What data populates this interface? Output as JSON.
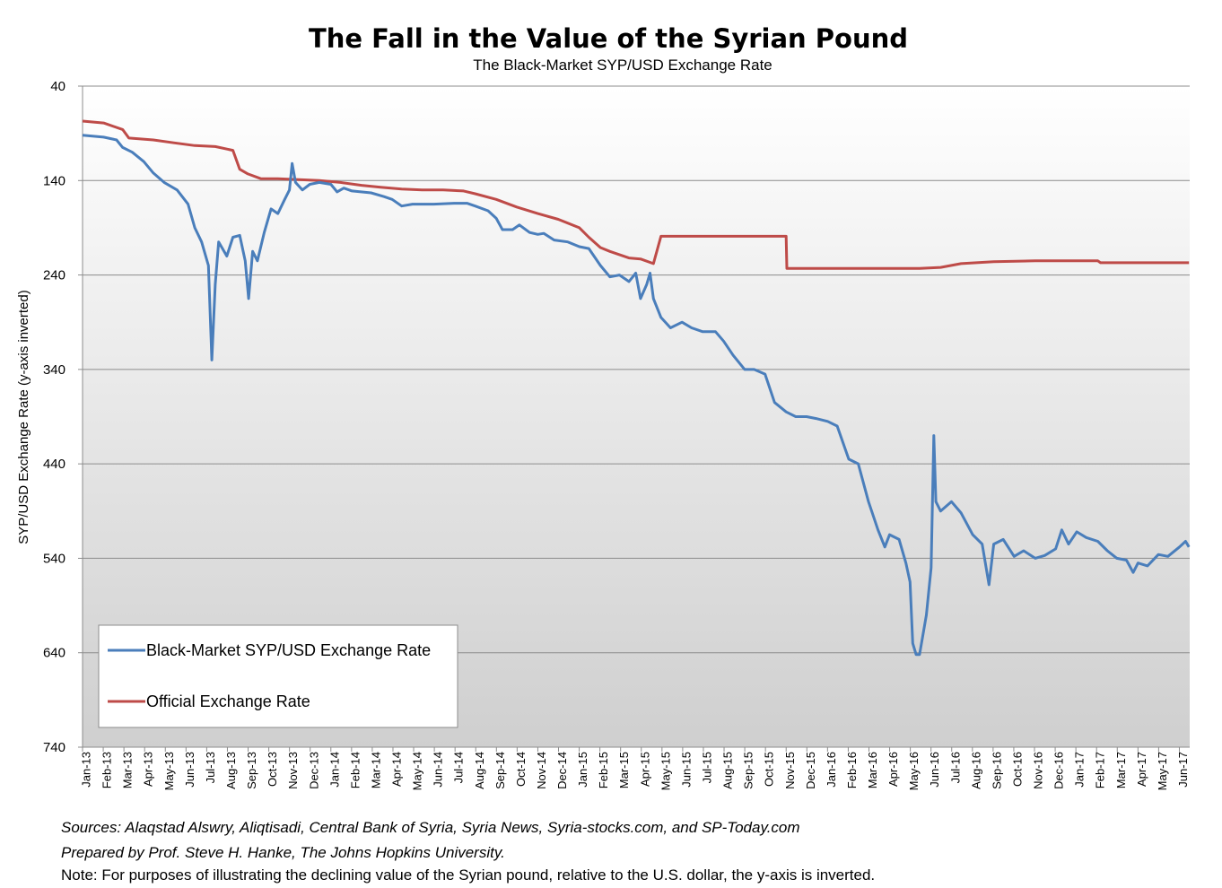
{
  "chart_data": {
    "type": "line",
    "title": "The Fall in the Value of the Syrian Pound",
    "subtitle": "The Black-Market SYP/USD Exchange Rate",
    "ylabel": "SYP/USD Exchange Rate (y-axis inverted)",
    "ylim": [
      40,
      740
    ],
    "y_inverted": true,
    "yticks": [
      40,
      140,
      240,
      340,
      440,
      540,
      640,
      740
    ],
    "grid": true,
    "legend_position": "bottom-left",
    "x_tick_labels": [
      "Jan-13",
      "Feb-13",
      "Mar-13",
      "Apr-13",
      "May-13",
      "Jun-13",
      "Jul-13",
      "Aug-13",
      "Sep-13",
      "Oct-13",
      "Nov-13",
      "Dec-13",
      "Jan-14",
      "Feb-14",
      "Mar-14",
      "Apr-14",
      "May-14",
      "Jun-14",
      "Jul-14",
      "Aug-14",
      "Sep-14",
      "Oct-14",
      "Nov-14",
      "Dec-14",
      "Jan-15",
      "Feb-15",
      "Mar-15",
      "Apr-15",
      "May-15",
      "Jun-15",
      "Jul-15",
      "Aug-15",
      "Sep-15",
      "Oct-15",
      "Nov-15",
      "Dec-15",
      "Jan-16",
      "Feb-16",
      "Mar-16",
      "Apr-16",
      "May-16",
      "Jun-16",
      "Jul-16",
      "Aug-16",
      "Sep-16",
      "Oct-16",
      "Nov-16",
      "Dec-16",
      "Jan-17",
      "Feb-17",
      "Mar-17",
      "Apr-17",
      "May-17",
      "Jun-17"
    ],
    "series": [
      {
        "name": "Black-Market SYP/USD Exchange Rate",
        "color": "#4a7ebb",
        "points": [
          [
            "2013-01-01",
            92
          ],
          [
            "2013-02-01",
            94
          ],
          [
            "2013-02-20",
            97
          ],
          [
            "2013-03-01",
            105
          ],
          [
            "2013-03-15",
            110
          ],
          [
            "2013-04-01",
            120
          ],
          [
            "2013-04-15",
            132
          ],
          [
            "2013-05-01",
            142
          ],
          [
            "2013-05-20",
            150
          ],
          [
            "2013-06-05",
            165
          ],
          [
            "2013-06-15",
            190
          ],
          [
            "2013-06-25",
            205
          ],
          [
            "2013-07-05",
            230
          ],
          [
            "2013-07-10",
            330
          ],
          [
            "2013-07-15",
            250
          ],
          [
            "2013-07-20",
            205
          ],
          [
            "2013-08-01",
            220
          ],
          [
            "2013-08-10",
            200
          ],
          [
            "2013-08-20",
            198
          ],
          [
            "2013-08-28",
            225
          ],
          [
            "2013-09-02",
            265
          ],
          [
            "2013-09-08",
            215
          ],
          [
            "2013-09-15",
            225
          ],
          [
            "2013-09-25",
            195
          ],
          [
            "2013-10-05",
            170
          ],
          [
            "2013-10-15",
            175
          ],
          [
            "2013-10-25",
            160
          ],
          [
            "2013-11-01",
            150
          ],
          [
            "2013-11-05",
            122
          ],
          [
            "2013-11-10",
            142
          ],
          [
            "2013-11-20",
            150
          ],
          [
            "2013-12-01",
            144
          ],
          [
            "2013-12-15",
            142
          ],
          [
            "2014-01-01",
            144
          ],
          [
            "2014-01-10",
            152
          ],
          [
            "2014-01-20",
            148
          ],
          [
            "2014-02-01",
            151
          ],
          [
            "2014-03-01",
            153
          ],
          [
            "2014-03-20",
            157
          ],
          [
            "2014-04-01",
            160
          ],
          [
            "2014-04-15",
            167
          ],
          [
            "2014-05-01",
            165
          ],
          [
            "2014-06-01",
            165
          ],
          [
            "2014-07-01",
            164
          ],
          [
            "2014-07-20",
            164
          ],
          [
            "2014-08-01",
            167
          ],
          [
            "2014-08-20",
            172
          ],
          [
            "2014-09-01",
            180
          ],
          [
            "2014-09-10",
            192
          ],
          [
            "2014-09-25",
            192
          ],
          [
            "2014-10-05",
            187
          ],
          [
            "2014-10-20",
            195
          ],
          [
            "2014-11-01",
            197
          ],
          [
            "2014-11-10",
            196
          ],
          [
            "2014-11-25",
            203
          ],
          [
            "2014-12-15",
            205
          ],
          [
            "2015-01-01",
            210
          ],
          [
            "2015-01-15",
            212
          ],
          [
            "2015-02-01",
            230
          ],
          [
            "2015-02-15",
            242
          ],
          [
            "2015-03-01",
            240
          ],
          [
            "2015-03-15",
            247
          ],
          [
            "2015-03-25",
            238
          ],
          [
            "2015-04-01",
            265
          ],
          [
            "2015-04-10",
            250
          ],
          [
            "2015-04-15",
            238
          ],
          [
            "2015-04-20",
            265
          ],
          [
            "2015-05-01",
            285
          ],
          [
            "2015-05-15",
            296
          ],
          [
            "2015-06-01",
            290
          ],
          [
            "2015-06-15",
            296
          ],
          [
            "2015-07-01",
            300
          ],
          [
            "2015-07-20",
            300
          ],
          [
            "2015-08-01",
            310
          ],
          [
            "2015-08-15",
            325
          ],
          [
            "2015-09-01",
            340
          ],
          [
            "2015-09-15",
            340
          ],
          [
            "2015-10-01",
            345
          ],
          [
            "2015-10-15",
            375
          ],
          [
            "2015-11-01",
            385
          ],
          [
            "2015-11-15",
            390
          ],
          [
            "2015-12-01",
            390
          ],
          [
            "2015-12-15",
            392
          ],
          [
            "2016-01-01",
            395
          ],
          [
            "2016-01-15",
            400
          ],
          [
            "2016-02-01",
            435
          ],
          [
            "2016-02-15",
            440
          ],
          [
            "2016-03-01",
            480
          ],
          [
            "2016-03-15",
            510
          ],
          [
            "2016-03-25",
            528
          ],
          [
            "2016-04-01",
            515
          ],
          [
            "2016-04-15",
            520
          ],
          [
            "2016-04-25",
            545
          ],
          [
            "2016-05-01",
            565
          ],
          [
            "2016-05-05",
            630
          ],
          [
            "2016-05-10",
            642
          ],
          [
            "2016-05-15",
            642
          ],
          [
            "2016-05-25",
            600
          ],
          [
            "2016-06-01",
            550
          ],
          [
            "2016-06-05",
            410
          ],
          [
            "2016-06-08",
            480
          ],
          [
            "2016-06-15",
            490
          ],
          [
            "2016-07-01",
            480
          ],
          [
            "2016-07-15",
            492
          ],
          [
            "2016-08-01",
            515
          ],
          [
            "2016-08-15",
            525
          ],
          [
            "2016-08-25",
            568
          ],
          [
            "2016-09-01",
            525
          ],
          [
            "2016-09-15",
            520
          ],
          [
            "2016-10-01",
            538
          ],
          [
            "2016-10-15",
            532
          ],
          [
            "2016-11-01",
            540
          ],
          [
            "2016-11-15",
            537
          ],
          [
            "2016-12-01",
            530
          ],
          [
            "2016-12-10",
            510
          ],
          [
            "2016-12-20",
            525
          ],
          [
            "2017-01-01",
            512
          ],
          [
            "2017-01-15",
            518
          ],
          [
            "2017-02-01",
            522
          ],
          [
            "2017-02-15",
            532
          ],
          [
            "2017-03-01",
            540
          ],
          [
            "2017-03-15",
            542
          ],
          [
            "2017-03-25",
            555
          ],
          [
            "2017-04-01",
            545
          ],
          [
            "2017-04-15",
            548
          ],
          [
            "2017-05-01",
            536
          ],
          [
            "2017-05-15",
            538
          ],
          [
            "2017-06-01",
            528
          ],
          [
            "2017-06-10",
            522
          ],
          [
            "2017-06-15",
            528
          ]
        ]
      },
      {
        "name": "Official Exchange Rate",
        "color": "#be4b48",
        "points": [
          [
            "2013-01-01",
            77
          ],
          [
            "2013-02-01",
            79
          ],
          [
            "2013-03-01",
            86
          ],
          [
            "2013-03-10",
            95
          ],
          [
            "2013-04-15",
            97
          ],
          [
            "2013-05-15",
            100
          ],
          [
            "2013-06-15",
            103
          ],
          [
            "2013-07-15",
            104
          ],
          [
            "2013-08-10",
            108
          ],
          [
            "2013-08-20",
            128
          ],
          [
            "2013-09-01",
            133
          ],
          [
            "2013-09-20",
            138
          ],
          [
            "2013-10-15",
            138
          ],
          [
            "2013-11-15",
            139
          ],
          [
            "2013-12-15",
            140
          ],
          [
            "2014-01-15",
            142
          ],
          [
            "2014-02-15",
            145
          ],
          [
            "2014-03-15",
            147
          ],
          [
            "2014-04-15",
            149
          ],
          [
            "2014-05-15",
            150
          ],
          [
            "2014-06-15",
            150
          ],
          [
            "2014-07-15",
            151
          ],
          [
            "2014-08-01",
            154
          ],
          [
            "2014-09-01",
            160
          ],
          [
            "2014-10-01",
            168
          ],
          [
            "2014-11-01",
            175
          ],
          [
            "2014-12-01",
            181
          ],
          [
            "2015-01-01",
            190
          ],
          [
            "2015-01-15",
            200
          ],
          [
            "2015-02-01",
            211
          ],
          [
            "2015-02-15",
            215
          ],
          [
            "2015-03-15",
            222
          ],
          [
            "2015-04-01",
            223
          ],
          [
            "2015-04-20",
            228
          ],
          [
            "2015-05-01",
            199
          ],
          [
            "2015-06-15",
            199
          ],
          [
            "2015-08-15",
            199
          ],
          [
            "2015-10-15",
            199
          ],
          [
            "2015-11-01",
            199
          ],
          [
            "2015-11-02",
            233
          ],
          [
            "2016-01-15",
            233
          ],
          [
            "2016-03-15",
            233
          ],
          [
            "2016-05-15",
            233
          ],
          [
            "2016-06-15",
            232
          ],
          [
            "2016-07-15",
            228
          ],
          [
            "2016-09-01",
            226
          ],
          [
            "2016-11-01",
            225
          ],
          [
            "2017-01-01",
            225
          ],
          [
            "2017-02-01",
            225
          ],
          [
            "2017-02-05",
            227
          ],
          [
            "2017-04-01",
            227
          ],
          [
            "2017-06-15",
            227
          ]
        ]
      }
    ]
  },
  "notes": {
    "sources": "Sources: Alaqstad Alswry, Aliqtisadi, Central Bank of Syria, Syria News, Syria-stocks.com, and SP-Today.com",
    "prepared": "Prepared by Prof. Steve H. Hanke, The Johns Hopkins University.",
    "note": "Note: For purposes of illustrating the declining value of the  Syrian pound, relative to the U.S. dollar, the y-axis is inverted."
  }
}
